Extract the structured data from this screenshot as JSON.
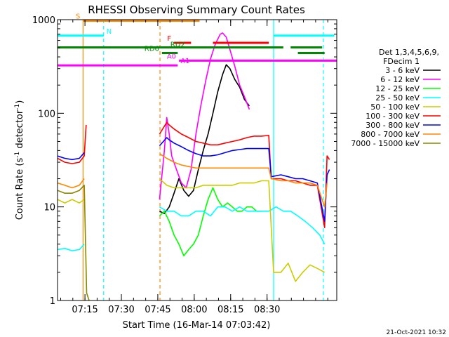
{
  "chart_data": {
    "type": "line",
    "title": "RHESSI Observing Summary Count Rates",
    "xlabel": "Start Time (16-Mar-14 07:03:42)",
    "ylabel_parts": [
      "Count Rate (s",
      "-1",
      " detector",
      "-1",
      ")"
    ],
    "y_scale": "log",
    "ylim": [
      1,
      1000
    ],
    "y_ticks": [
      {
        "value": 1,
        "label": "1"
      },
      {
        "value": 10,
        "label": "10"
      },
      {
        "value": 100,
        "label": "100"
      },
      {
        "value": 1000,
        "label": "1000"
      }
    ],
    "xlim_minutes": [
      0,
      115
    ],
    "x_ticks": [
      {
        "minutes": 11.3,
        "label": "07:15"
      },
      {
        "minutes": 26.3,
        "label": "07:30"
      },
      {
        "minutes": 41.3,
        "label": "07:45"
      },
      {
        "minutes": 56.3,
        "label": "08:00"
      },
      {
        "minutes": 71.3,
        "label": "08:15"
      },
      {
        "minutes": 86.3,
        "label": "08:30"
      }
    ],
    "legend_header": [
      "Det 1,3,4,5,6,9,",
      "FDecim 1"
    ],
    "series": [
      {
        "name": "3 - 6 keV",
        "color": "#000000",
        "points": [
          [
            42,
            9
          ],
          [
            44,
            8.5
          ],
          [
            46,
            10
          ],
          [
            48,
            14
          ],
          [
            50,
            20
          ],
          [
            52,
            15
          ],
          [
            54,
            13
          ],
          [
            56,
            15
          ],
          [
            58,
            25
          ],
          [
            60,
            40
          ],
          [
            62,
            60
          ],
          [
            64,
            100
          ],
          [
            66,
            170
          ],
          [
            68,
            260
          ],
          [
            69.5,
            330
          ],
          [
            71,
            300
          ],
          [
            73,
            230
          ],
          [
            75,
            190
          ],
          [
            77,
            140
          ],
          [
            79,
            120
          ]
        ]
      },
      {
        "name": "6 - 12 keV",
        "color": "#ff00ff",
        "points": [
          [
            42,
            12
          ],
          [
            44,
            40
          ],
          [
            45,
            90
          ],
          [
            46,
            60
          ],
          [
            47,
            35
          ],
          [
            49,
            25
          ],
          [
            51,
            18
          ],
          [
            53,
            16
          ],
          [
            55,
            25
          ],
          [
            57,
            60
          ],
          [
            59,
            120
          ],
          [
            61,
            220
          ],
          [
            63,
            380
          ],
          [
            65,
            550
          ],
          [
            67,
            700
          ],
          [
            68,
            720
          ],
          [
            69.5,
            650
          ],
          [
            71,
            480
          ],
          [
            73,
            320
          ],
          [
            75,
            200
          ],
          [
            77,
            150
          ],
          [
            79,
            110
          ]
        ]
      },
      {
        "name": "12 - 25 keV",
        "color": "#00ff00",
        "points": [
          [
            42,
            8
          ],
          [
            44,
            9
          ],
          [
            46,
            7
          ],
          [
            48,
            5
          ],
          [
            50,
            4
          ],
          [
            52,
            3
          ],
          [
            54,
            3.5
          ],
          [
            56,
            4
          ],
          [
            58,
            5
          ],
          [
            60,
            8
          ],
          [
            62,
            12
          ],
          [
            64,
            16
          ],
          [
            66,
            12
          ],
          [
            68,
            10
          ],
          [
            70,
            11
          ],
          [
            72,
            10
          ],
          [
            74,
            9
          ],
          [
            76,
            9
          ],
          [
            78,
            10
          ],
          [
            80,
            10
          ],
          [
            82,
            9
          ],
          [
            84,
            9
          ]
        ]
      },
      {
        "name": "25 - 50 keV",
        "color": "#00ffff",
        "points": [
          [
            0,
            3.5
          ],
          [
            3,
            3.6
          ],
          [
            6,
            3.4
          ],
          [
            9,
            3.5
          ],
          [
            11,
            4
          ],
          [
            42,
            10
          ],
          [
            45,
            9
          ],
          [
            48,
            9
          ],
          [
            51,
            8
          ],
          [
            54,
            8
          ],
          [
            57,
            9
          ],
          [
            60,
            9
          ],
          [
            63,
            8
          ],
          [
            66,
            10
          ],
          [
            69,
            10
          ],
          [
            72,
            9
          ],
          [
            75,
            10
          ],
          [
            78,
            9
          ],
          [
            81,
            9
          ],
          [
            84,
            9
          ],
          [
            87,
            9
          ],
          [
            90,
            10
          ],
          [
            93,
            9
          ],
          [
            96,
            9
          ],
          [
            99,
            8
          ],
          [
            102,
            7
          ],
          [
            105,
            6
          ],
          [
            108,
            5
          ],
          [
            110,
            4
          ]
        ]
      },
      {
        "name": "50 - 100 keV",
        "color": "#cccc00",
        "points": [
          [
            0,
            12
          ],
          [
            3,
            11
          ],
          [
            6,
            12
          ],
          [
            9,
            11
          ],
          [
            11,
            12
          ],
          [
            42,
            20
          ],
          [
            45,
            17
          ],
          [
            48,
            16
          ],
          [
            51,
            16
          ],
          [
            54,
            16
          ],
          [
            57,
            16
          ],
          [
            60,
            17
          ],
          [
            63,
            17
          ],
          [
            66,
            17
          ],
          [
            69,
            17
          ],
          [
            72,
            17
          ],
          [
            75,
            18
          ],
          [
            78,
            18
          ],
          [
            81,
            18
          ],
          [
            84,
            19
          ],
          [
            87,
            19
          ],
          [
            89,
            2
          ],
          [
            92,
            2
          ],
          [
            95,
            2.5
          ],
          [
            98,
            1.6
          ],
          [
            101,
            2
          ],
          [
            104,
            2.4
          ],
          [
            107,
            2.2
          ],
          [
            110,
            2
          ]
        ]
      },
      {
        "name": "100 - 300 keV",
        "color": "#ff0000",
        "points": [
          [
            0,
            33
          ],
          [
            3,
            30
          ],
          [
            6,
            29
          ],
          [
            9,
            30
          ],
          [
            11,
            35
          ],
          [
            11.8,
            75
          ],
          [
            42,
            60
          ],
          [
            45,
            80
          ],
          [
            46,
            75
          ],
          [
            48,
            68
          ],
          [
            51,
            60
          ],
          [
            54,
            55
          ],
          [
            57,
            50
          ],
          [
            60,
            48
          ],
          [
            63,
            46
          ],
          [
            66,
            46
          ],
          [
            69,
            48
          ],
          [
            72,
            50
          ],
          [
            75,
            52
          ],
          [
            78,
            55
          ],
          [
            81,
            57
          ],
          [
            84,
            57
          ],
          [
            87,
            58
          ],
          [
            88,
            20
          ],
          [
            92,
            20
          ],
          [
            95,
            19
          ],
          [
            98,
            19
          ],
          [
            101,
            18
          ],
          [
            104,
            17
          ],
          [
            107,
            17
          ],
          [
            110,
            6
          ],
          [
            111,
            35
          ],
          [
            112,
            32
          ]
        ]
      },
      {
        "name": "300 - 800 keV",
        "color": "#0000ff",
        "points": [
          [
            0,
            35
          ],
          [
            3,
            33
          ],
          [
            6,
            32
          ],
          [
            9,
            33
          ],
          [
            11,
            38
          ],
          [
            42,
            45
          ],
          [
            45,
            55
          ],
          [
            46,
            52
          ],
          [
            48,
            48
          ],
          [
            51,
            44
          ],
          [
            54,
            40
          ],
          [
            57,
            37
          ],
          [
            60,
            35
          ],
          [
            63,
            35
          ],
          [
            66,
            36
          ],
          [
            69,
            38
          ],
          [
            72,
            40
          ],
          [
            75,
            41
          ],
          [
            78,
            42
          ],
          [
            81,
            42
          ],
          [
            84,
            42
          ],
          [
            87,
            42
          ],
          [
            88,
            21
          ],
          [
            92,
            22
          ],
          [
            95,
            21
          ],
          [
            98,
            20
          ],
          [
            101,
            20
          ],
          [
            104,
            19
          ],
          [
            107,
            18
          ],
          [
            110,
            7
          ],
          [
            111,
            22
          ],
          [
            112,
            25
          ]
        ]
      },
      {
        "name": "800 - 7000 keV",
        "color": "#ff8800",
        "points": [
          [
            0,
            18
          ],
          [
            3,
            17
          ],
          [
            6,
            16
          ],
          [
            9,
            17
          ],
          [
            11,
            20
          ],
          [
            42,
            37
          ],
          [
            45,
            33
          ],
          [
            48,
            30
          ],
          [
            51,
            28
          ],
          [
            54,
            27
          ],
          [
            57,
            26
          ],
          [
            60,
            26
          ],
          [
            63,
            26
          ],
          [
            66,
            26
          ],
          [
            69,
            26
          ],
          [
            72,
            26
          ],
          [
            75,
            26
          ],
          [
            78,
            26
          ],
          [
            81,
            26
          ],
          [
            84,
            26
          ],
          [
            87,
            26
          ],
          [
            88,
            20
          ],
          [
            92,
            19
          ],
          [
            95,
            19
          ],
          [
            98,
            18
          ],
          [
            101,
            18
          ],
          [
            104,
            18
          ],
          [
            107,
            17
          ],
          [
            110,
            10
          ],
          [
            111,
            18
          ]
        ]
      },
      {
        "name": "7000 - 15000 keV",
        "color": "#888800",
        "points": [
          [
            0,
            15
          ],
          [
            3,
            14
          ],
          [
            6,
            14
          ],
          [
            9,
            15
          ],
          [
            11,
            17
          ],
          [
            12,
            1.2
          ],
          [
            13,
            1
          ]
        ]
      }
    ],
    "state_bars": [
      {
        "label": "S",
        "color": "#ff8800",
        "start": 10.5,
        "end": 58.5,
        "level": 975,
        "label_side": "left"
      },
      {
        "label": "N",
        "color": "#00ffff",
        "start": 0,
        "end": 19,
        "level": 675,
        "label_side": "right"
      },
      {
        "label": "N",
        "color": "#00ffff",
        "start": 89,
        "end": 114,
        "level": 675,
        "label_side": "none"
      },
      {
        "label": "F",
        "color": "#ff0000",
        "start": 48,
        "end": 55,
        "level": 565,
        "label_side": "left"
      },
      {
        "label": "F",
        "color": "#ff0000",
        "start": 64,
        "end": 87,
        "level": 565,
        "label_side": "none"
      },
      {
        "label": "RD2",
        "color": "#008800",
        "start": 0,
        "end": 93,
        "level": 505,
        "label_side": "inline"
      },
      {
        "label": "RD2",
        "color": "#008800",
        "start": 96,
        "end": 109,
        "level": 505,
        "label_side": "none"
      },
      {
        "label": "RD6",
        "color": "#008800",
        "start": 43,
        "end": 49.5,
        "level": 440,
        "label_side": "left"
      },
      {
        "label": "RD6",
        "color": "#008800",
        "start": 99,
        "end": 110,
        "level": 440,
        "label_side": "none"
      },
      {
        "label": "A0",
        "color": "#ff00ff",
        "start": 50,
        "end": 115,
        "level": 365,
        "label_side": "left"
      },
      {
        "label": "A1",
        "color": "#ff00ff",
        "start": 0,
        "end": 49.5,
        "level": 325,
        "label_side": "right"
      }
    ],
    "vertical_markers": [
      {
        "minutes": 10.5,
        "color": "#ff8800",
        "style": "solid"
      },
      {
        "minutes": 19.0,
        "color": "#00ffff",
        "style": "dashed"
      },
      {
        "minutes": 42.2,
        "color": "#ff8800",
        "style": "dashed"
      },
      {
        "minutes": 89.0,
        "color": "#00ffff",
        "style": "solid"
      },
      {
        "minutes": 109.5,
        "color": "#00ffff",
        "style": "dashed"
      }
    ],
    "timestamp": "21-Oct-2021 10:32"
  }
}
